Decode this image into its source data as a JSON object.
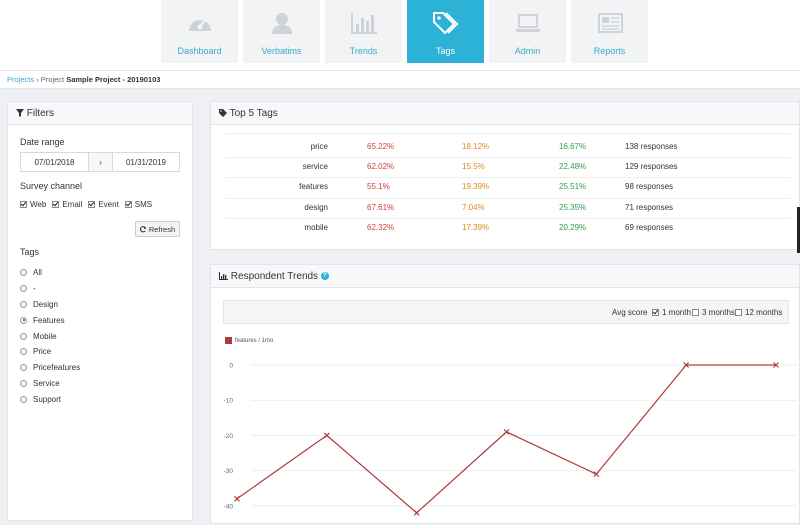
{
  "nav": {
    "tabs": [
      {
        "label": "Dashboard",
        "icon": "gauge-icon",
        "active": false
      },
      {
        "label": "Verbatims",
        "icon": "person-icon",
        "active": false
      },
      {
        "label": "Trends",
        "icon": "bar-chart-icon",
        "active": false
      },
      {
        "label": "Tags",
        "icon": "tags-icon",
        "active": true
      },
      {
        "label": "Admin",
        "icon": "laptop-icon",
        "active": false
      },
      {
        "label": "Reports",
        "icon": "newspaper-icon",
        "active": false
      }
    ]
  },
  "breadcrumb": {
    "root": "Projects",
    "separator": "›",
    "prefix": "Project",
    "project": "Sample Project - 20190103"
  },
  "filters": {
    "title": "Filters",
    "date_range_label": "Date range",
    "start_date": "07/01/2018",
    "arrow": "›",
    "end_date": "01/31/2019",
    "channel_label": "Survey channel",
    "channels": [
      {
        "label": "Web",
        "checked": true
      },
      {
        "label": "Email",
        "checked": true
      },
      {
        "label": "Event",
        "checked": true
      },
      {
        "label": "SMS",
        "checked": true
      }
    ],
    "refresh_label": "Refresh",
    "tags_label": "Tags",
    "tags": [
      {
        "label": "All",
        "selected": false
      },
      {
        "label": "-",
        "selected": false
      },
      {
        "label": "Design",
        "selected": false
      },
      {
        "label": "Features",
        "selected": true
      },
      {
        "label": "Mobile",
        "selected": false
      },
      {
        "label": "Price",
        "selected": false
      },
      {
        "label": "Pricefeatures",
        "selected": false
      },
      {
        "label": "Service",
        "selected": false
      },
      {
        "label": "Support",
        "selected": false
      }
    ]
  },
  "top_tags": {
    "title": "Top 5 Tags",
    "rows": [
      {
        "name": "price",
        "p1": "65.22%",
        "p2": "18.12%",
        "p3": "16.67%",
        "responses": "138 responses"
      },
      {
        "name": "service",
        "p1": "62.02%",
        "p2": "15.5%",
        "p3": "22.48%",
        "responses": "129 responses"
      },
      {
        "name": "features",
        "p1": "55.1%",
        "p2": "19.39%",
        "p3": "25.51%",
        "responses": "98 responses"
      },
      {
        "name": "design",
        "p1": "67.61%",
        "p2": "7.04%",
        "p3": "25.35%",
        "responses": "71 responses"
      },
      {
        "name": "mobile",
        "p1": "62.32%",
        "p2": "17.39%",
        "p3": "20.29%",
        "responses": "69 responses"
      }
    ],
    "colors": {
      "p1": "#d23b3b",
      "p2": "#e08a1e",
      "p3": "#2e9e4f"
    }
  },
  "trends": {
    "title": "Respondent Trends",
    "help": "?",
    "avg_label": "Avg score",
    "options": [
      {
        "label": "1 month",
        "checked": true
      },
      {
        "label": "3 months",
        "checked": false
      },
      {
        "label": "12 months",
        "checked": false
      }
    ]
  },
  "chart_data": {
    "type": "line",
    "series": [
      {
        "name": "features / 1mo",
        "color": "#b03a3a",
        "values": [
          -38,
          -20,
          -42,
          -19,
          -31,
          0,
          0
        ]
      }
    ],
    "yticks": [
      0,
      -10,
      -20,
      -30,
      -40
    ],
    "ylim": [
      -43,
      0
    ],
    "grid": true,
    "legend": "top-left"
  }
}
